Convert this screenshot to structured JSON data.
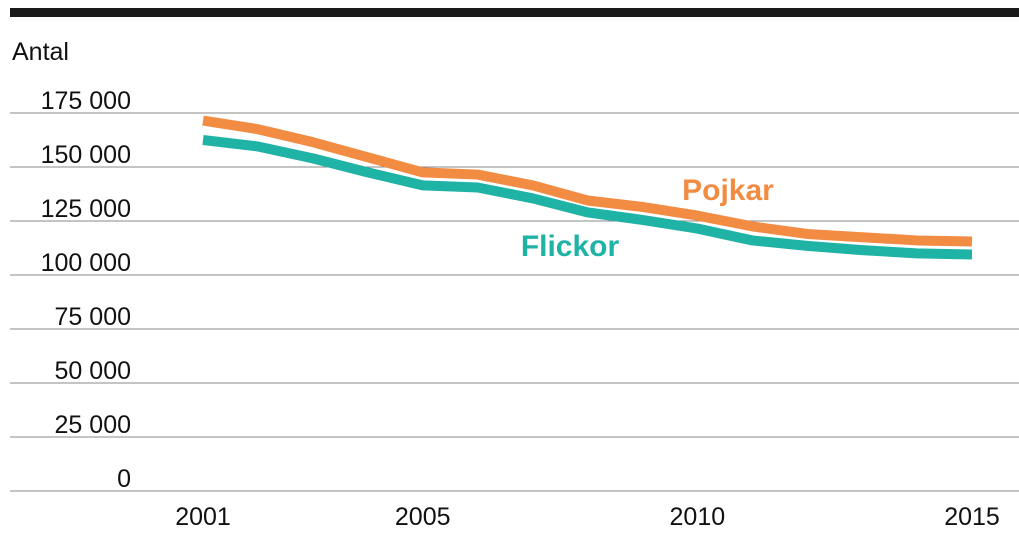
{
  "chart_data": {
    "type": "line",
    "y_label": "Antal",
    "x": [
      2001,
      2002,
      2003,
      2004,
      2005,
      2006,
      2007,
      2008,
      2009,
      2010,
      2011,
      2012,
      2013,
      2014,
      2015
    ],
    "series": [
      {
        "name": "Pojkar",
        "color": "#f28c43",
        "values": [
          171500,
          167500,
          161500,
          154500,
          147500,
          146500,
          141500,
          134500,
          131500,
          127500,
          122500,
          119000,
          117500,
          116000,
          115500
        ]
      },
      {
        "name": "Flickor",
        "color": "#1fb3a5",
        "values": [
          162500,
          159500,
          154000,
          147500,
          141500,
          140500,
          135500,
          129000,
          125500,
          121500,
          116000,
          113500,
          111500,
          110000,
          109500
        ]
      }
    ],
    "xlim": [
      2001,
      2015
    ],
    "xticks": [
      2001,
      2005,
      2010,
      2015
    ],
    "ylim": [
      0,
      175000
    ],
    "yticks": [
      {
        "value": 0,
        "label": "0"
      },
      {
        "value": 25000,
        "label": "25 000"
      },
      {
        "value": 50000,
        "label": "50 000"
      },
      {
        "value": 75000,
        "label": "75 000"
      },
      {
        "value": 100000,
        "label": "100 000"
      },
      {
        "value": 125000,
        "label": "125 000"
      },
      {
        "value": 150000,
        "label": "150 000"
      },
      {
        "value": 175000,
        "label": "175 000"
      }
    ],
    "grid": true
  }
}
